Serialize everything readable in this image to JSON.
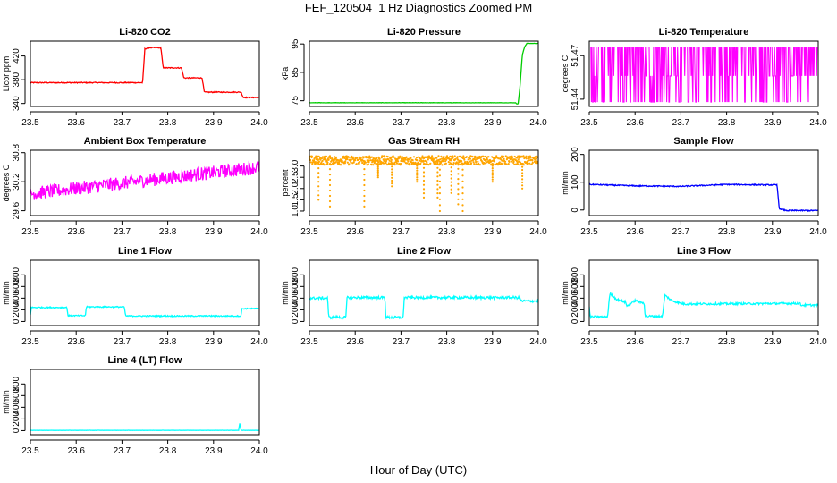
{
  "figure": {
    "title": "FEF_120504  1 Hz Diagnostics Zoomed PM",
    "xlabel": "Hour of Day (UTC)"
  },
  "chart_data": [
    {
      "type": "line",
      "title": "Li-820 CO2",
      "xlabel": "",
      "ylabel": "Licor ppm",
      "color": "#ff0000",
      "xlim": [
        23.5,
        24.0
      ],
      "ylim": [
        335,
        445
      ],
      "xticks": [
        "23.5",
        "23.6",
        "23.7",
        "23.8",
        "23.9",
        "24.0"
      ],
      "yticks": [
        {
          "v": 340,
          "label": "340"
        },
        {
          "v": 380,
          "label": "380"
        },
        {
          "v": 420,
          "label": "420"
        }
      ],
      "segments": [
        [
          23.5,
          375
        ],
        [
          23.745,
          375
        ],
        [
          23.75,
          432
        ],
        [
          23.76,
          434
        ],
        [
          23.785,
          434
        ],
        [
          23.79,
          400
        ],
        [
          23.83,
          400
        ],
        [
          23.835,
          383
        ],
        [
          23.875,
          383
        ],
        [
          23.88,
          359
        ],
        [
          23.96,
          359
        ],
        [
          23.965,
          350
        ],
        [
          24.0,
          350
        ]
      ],
      "noise": 0.8
    },
    {
      "type": "line",
      "title": "Li-820 Pressure",
      "xlabel": "",
      "ylabel": "kPa",
      "color": "#00cc00",
      "xlim": [
        23.5,
        24.0
      ],
      "ylim": [
        73,
        96
      ],
      "xticks": [
        "23.5",
        "23.6",
        "23.7",
        "23.8",
        "23.9",
        "24.0"
      ],
      "yticks": [
        {
          "v": 75,
          "label": "75"
        },
        {
          "v": 85,
          "label": "85"
        },
        {
          "v": 95,
          "label": "95"
        }
      ],
      "segments": [
        [
          23.5,
          74.3
        ],
        [
          23.95,
          74.3
        ],
        [
          23.953,
          73.9
        ],
        [
          23.956,
          74.0
        ],
        [
          23.96,
          80
        ],
        [
          23.965,
          91
        ],
        [
          23.97,
          94
        ],
        [
          23.975,
          95.2
        ],
        [
          24.0,
          95.2
        ]
      ],
      "noise": 0.05
    },
    {
      "type": "line",
      "title": "Li-820 Temperature",
      "xlabel": "",
      "ylabel": "degrees C",
      "color": "#ff00ff",
      "xlim": [
        23.5,
        24.0
      ],
      "ylim": [
        51.435,
        51.48
      ],
      "xticks": [
        "23.5",
        "23.6",
        "23.7",
        "23.8",
        "23.9",
        "24.0"
      ],
      "yticks": [
        {
          "v": 51.44,
          "label": "51.44"
        },
        {
          "v": 51.47,
          "label": "51.47"
        }
      ],
      "levels": [
        51.438,
        51.456,
        51.476
      ],
      "pattern": "discrete"
    },
    {
      "type": "line",
      "title": "Ambient Box Temperature",
      "xlabel": "",
      "ylabel": "degrees C",
      "color": "#ff00ff",
      "xlim": [
        23.5,
        24.0
      ],
      "ylim": [
        29.5,
        30.85
      ],
      "xticks": [
        "23.5",
        "23.6",
        "23.7",
        "23.8",
        "23.9",
        "24.0"
      ],
      "yticks": [
        {
          "v": 29.6,
          "label": "29.6"
        },
        {
          "v": 30.2,
          "label": "30.2"
        },
        {
          "v": 30.8,
          "label": "30.8"
        }
      ],
      "segments": [
        [
          23.5,
          29.95
        ],
        [
          24.0,
          30.5
        ]
      ],
      "noise": 0.14
    },
    {
      "type": "scatter",
      "title": "Gas Stream RH",
      "xlabel": "",
      "ylabel": "percent",
      "color": "#ffa500",
      "xlim": [
        23.5,
        24.0
      ],
      "ylim": [
        0.8,
        3.7
      ],
      "xticks": [
        "23.5",
        "23.6",
        "23.7",
        "23.8",
        "23.9",
        "24.0"
      ],
      "yticks": [
        {
          "v": 1.0,
          "label": "1.0"
        },
        {
          "v": 1.5,
          "label": "1.5"
        },
        {
          "v": 2.0,
          "label": "2.0"
        },
        {
          "v": 2.5,
          "label": "2.5"
        },
        {
          "v": 3.0,
          "label": "3.0"
        }
      ],
      "segments": [
        [
          23.5,
          3.25
        ],
        [
          24.0,
          3.25
        ]
      ],
      "noise": 0.2,
      "dips": [
        [
          23.52,
          1.5
        ],
        [
          23.545,
          1.2
        ],
        [
          23.62,
          1.2
        ],
        [
          23.65,
          2.5
        ],
        [
          23.68,
          2.1
        ],
        [
          23.735,
          2.3
        ],
        [
          23.75,
          1.6
        ],
        [
          23.78,
          1.6
        ],
        [
          23.785,
          1.0
        ],
        [
          23.81,
          1.8
        ],
        [
          23.825,
          1.3
        ],
        [
          23.835,
          1.0
        ],
        [
          23.9,
          2.3
        ],
        [
          23.965,
          2.0
        ]
      ]
    },
    {
      "type": "line",
      "title": "Sample Flow",
      "xlabel": "",
      "ylabel": "ml/min",
      "color": "#0000ff",
      "xlim": [
        23.5,
        24.0
      ],
      "ylim": [
        -20,
        215
      ],
      "xticks": [
        "23.5",
        "23.6",
        "23.7",
        "23.8",
        "23.9",
        "24.0"
      ],
      "yticks": [
        {
          "v": 0,
          "label": "0"
        },
        {
          "v": 100,
          "label": "100"
        },
        {
          "v": 200,
          "label": "200"
        }
      ],
      "segments": [
        [
          23.5,
          92
        ],
        [
          23.6,
          87
        ],
        [
          23.7,
          85
        ],
        [
          23.8,
          92
        ],
        [
          23.91,
          90
        ],
        [
          23.915,
          5
        ],
        [
          23.93,
          -2
        ],
        [
          24.0,
          -2
        ]
      ],
      "noise": 2
    },
    {
      "type": "line",
      "title": "Line 1 Flow",
      "xlabel": "",
      "ylabel": "ml/min",
      "color": "#00ffff",
      "xlim": [
        23.5,
        24.0
      ],
      "ylim": [
        -70,
        1050
      ],
      "xticks": [
        "23.5",
        "23.6",
        "23.7",
        "23.8",
        "23.9",
        "24.0"
      ],
      "yticks": [
        {
          "v": 0,
          "label": "0"
        },
        {
          "v": 200,
          "label": "200"
        },
        {
          "v": 400,
          "label": "400"
        },
        {
          "v": 600,
          "label": "600"
        },
        {
          "v": 800,
          "label": "800"
        }
      ],
      "segments": [
        [
          23.5,
          120
        ],
        [
          23.502,
          240
        ],
        [
          23.58,
          240
        ],
        [
          23.582,
          100
        ],
        [
          23.62,
          100
        ],
        [
          23.622,
          250
        ],
        [
          23.705,
          250
        ],
        [
          23.708,
          95
        ],
        [
          23.96,
          95
        ],
        [
          23.962,
          220
        ],
        [
          24.0,
          220
        ]
      ],
      "noise": 10
    },
    {
      "type": "line",
      "title": "Line 2 Flow",
      "xlabel": "",
      "ylabel": "ml/min",
      "color": "#00ffff",
      "xlim": [
        23.5,
        24.0
      ],
      "ylim": [
        -70,
        1050
      ],
      "xticks": [
        "23.5",
        "23.6",
        "23.7",
        "23.8",
        "23.9",
        "24.0"
      ],
      "yticks": [
        {
          "v": 0,
          "label": "0"
        },
        {
          "v": 200,
          "label": "200"
        },
        {
          "v": 400,
          "label": "400"
        },
        {
          "v": 600,
          "label": "600"
        },
        {
          "v": 800,
          "label": "800"
        }
      ],
      "segments": [
        [
          23.5,
          400
        ],
        [
          23.54,
          400
        ],
        [
          23.542,
          70
        ],
        [
          23.58,
          70
        ],
        [
          23.582,
          410
        ],
        [
          23.665,
          410
        ],
        [
          23.667,
          70
        ],
        [
          23.705,
          70
        ],
        [
          23.707,
          410
        ],
        [
          23.96,
          410
        ],
        [
          23.962,
          350
        ],
        [
          24.0,
          350
        ]
      ],
      "noise": 22
    },
    {
      "type": "line",
      "title": "Line 3 Flow",
      "xlabel": "",
      "ylabel": "ml/min",
      "color": "#00ffff",
      "xlim": [
        23.5,
        24.0
      ],
      "ylim": [
        -70,
        1050
      ],
      "xticks": [
        "23.5",
        "23.6",
        "23.7",
        "23.8",
        "23.9",
        "24.0"
      ],
      "yticks": [
        {
          "v": 0,
          "label": "0"
        },
        {
          "v": 200,
          "label": "200"
        },
        {
          "v": 400,
          "label": "400"
        },
        {
          "v": 600,
          "label": "600"
        },
        {
          "v": 800,
          "label": "800"
        }
      ],
      "segments": [
        [
          23.5,
          250
        ],
        [
          23.502,
          80
        ],
        [
          23.54,
          80
        ],
        [
          23.545,
          480
        ],
        [
          23.56,
          380
        ],
        [
          23.58,
          330
        ],
        [
          23.582,
          260
        ],
        [
          23.6,
          360
        ],
        [
          23.615,
          320
        ],
        [
          23.62,
          320
        ],
        [
          23.622,
          90
        ],
        [
          23.66,
          90
        ],
        [
          23.665,
          450
        ],
        [
          23.68,
          360
        ],
        [
          23.7,
          310
        ],
        [
          23.71,
          300
        ],
        [
          23.96,
          310
        ],
        [
          23.962,
          280
        ],
        [
          24.0,
          280
        ]
      ],
      "noise": 18
    },
    {
      "type": "line",
      "title": "Line 4 (LT) Flow",
      "xlabel": "",
      "ylabel": "ml/min",
      "color": "#00ffff",
      "xlim": [
        23.5,
        24.0
      ],
      "ylim": [
        -70,
        1050
      ],
      "xticks": [
        "23.5",
        "23.6",
        "23.7",
        "23.8",
        "23.9",
        "24.0"
      ],
      "yticks": [
        {
          "v": 0,
          "label": "0"
        },
        {
          "v": 200,
          "label": "200"
        },
        {
          "v": 400,
          "label": "400"
        },
        {
          "v": 600,
          "label": "600"
        },
        {
          "v": 800,
          "label": "800"
        }
      ],
      "segments": [
        [
          23.5,
          5
        ],
        [
          23.955,
          5
        ],
        [
          23.957,
          130
        ],
        [
          23.96,
          5
        ],
        [
          24.0,
          5
        ]
      ],
      "noise": 2
    }
  ]
}
